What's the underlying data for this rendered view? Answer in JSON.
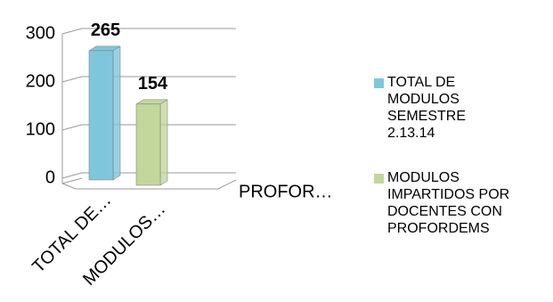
{
  "chart_data": {
    "type": "bar3d",
    "categories": [
      "TOTAL DE…",
      "MODULOS…"
    ],
    "depth_label": "PROFOR…",
    "series": [
      {
        "name": "TOTAL DE MODULOS SEMESTRE 2.13.14",
        "color": "#7fc6db",
        "values": [
          265,
          null
        ]
      },
      {
        "name": "MODULOS IMPARTIDOS POR DOCENTES CON PROFORDEMS",
        "color": "#c3d69b",
        "values": [
          null,
          154
        ]
      }
    ],
    "ylim": [
      0,
      300
    ],
    "yticks": [
      0,
      100,
      200,
      300
    ],
    "grid": true,
    "legend": "right"
  }
}
